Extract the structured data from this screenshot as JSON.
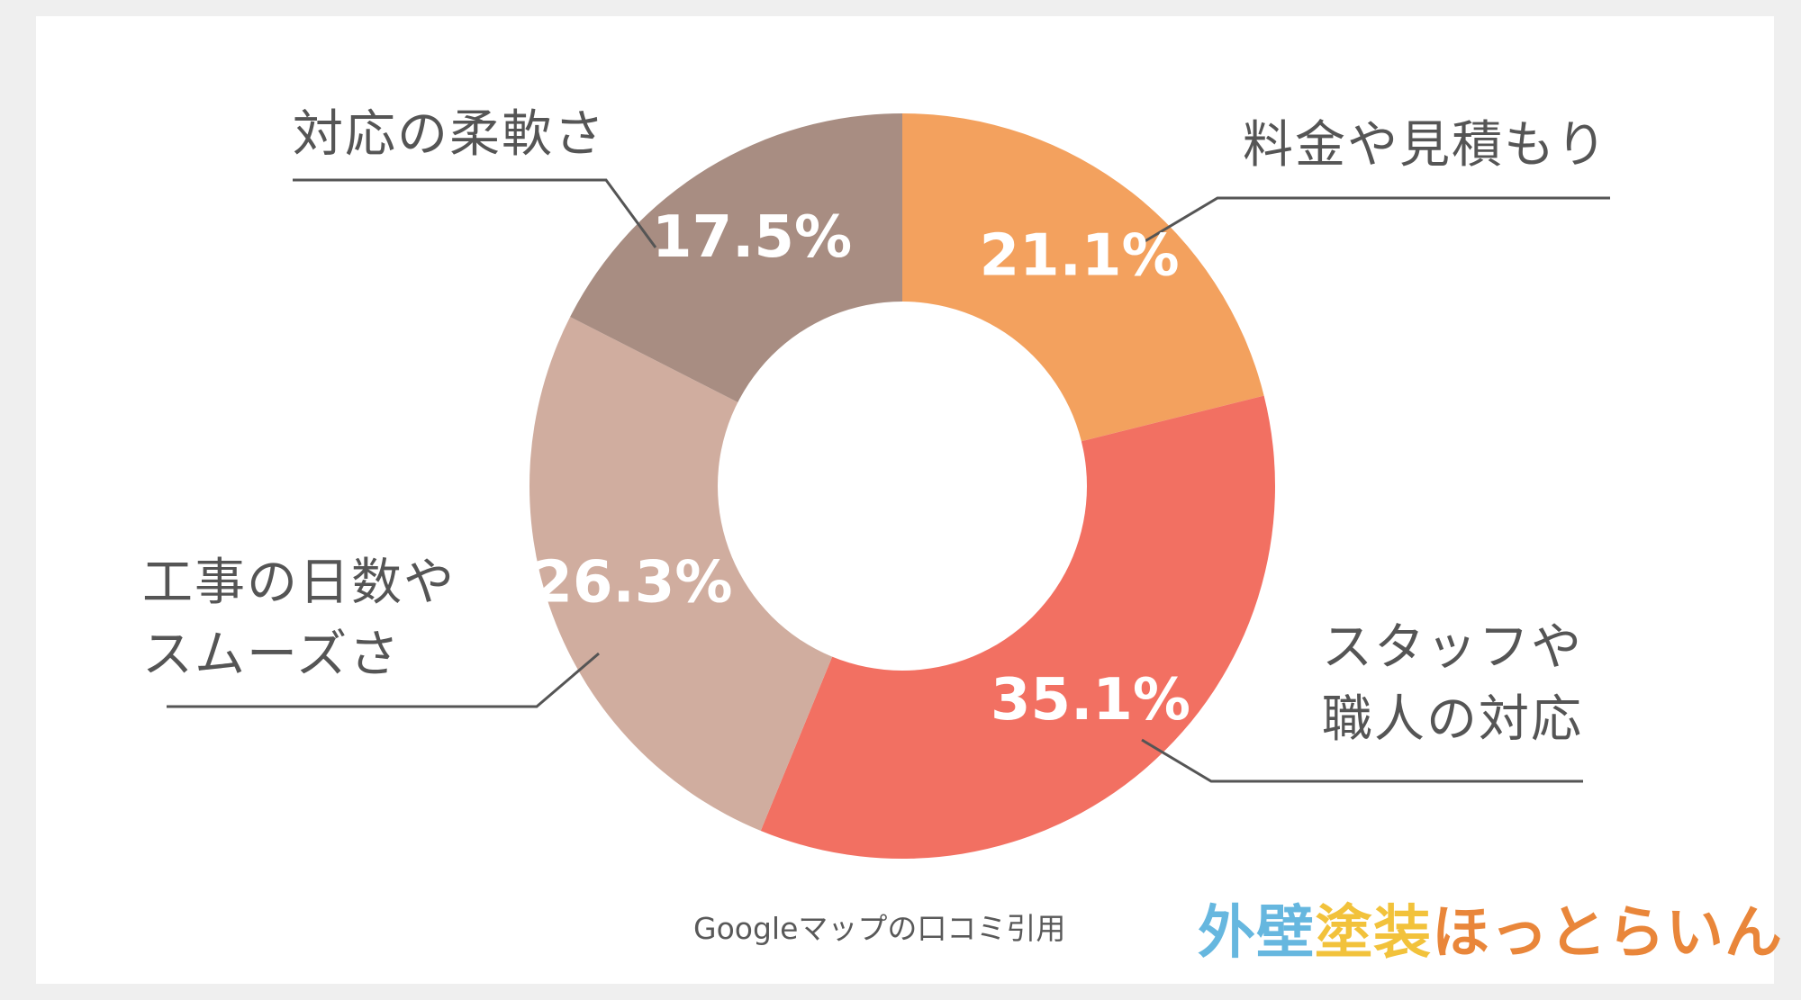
{
  "chart_data": {
    "type": "pie",
    "donut": true,
    "slices": [
      {
        "label": "料金や見積もり",
        "label_lines": [
          "料金や見積もり"
        ],
        "value": 21.1,
        "value_label": "21.1%",
        "color": "#f3a15e"
      },
      {
        "label": "スタッフや職人の対応",
        "label_lines": [
          "スタッフや",
          "職人の対応"
        ],
        "value": 35.1,
        "value_label": "35.1%",
        "color": "#f27062"
      },
      {
        "label": "工事の日数やスムーズさ",
        "label_lines": [
          "工事の日数や",
          "スムーズさ"
        ],
        "value": 26.3,
        "value_label": "26.3%",
        "color": "#d0ad9f"
      },
      {
        "label": "対応の柔軟さ",
        "label_lines": [
          "対応の柔軟さ"
        ],
        "value": 17.5,
        "value_label": "17.5%",
        "color": "#a88d82"
      }
    ],
    "start_angle": "12 o'clock",
    "direction": "clockwise",
    "leader_line_color": "#555555"
  },
  "source_note": "Googleマップの口コミ引用",
  "logo": {
    "text": "外壁塗装ほっとらいん",
    "colors": {
      "part1": "#66b7df",
      "part2": "#f2c23b",
      "part3": "#e9863a"
    }
  },
  "colors": {
    "background": "#efefef",
    "card": "#ffffff"
  }
}
